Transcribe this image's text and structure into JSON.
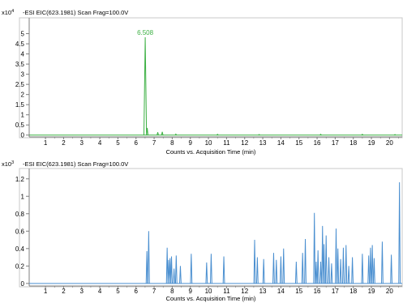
{
  "colors": {
    "series1": "#3cb043",
    "series2": "#4a8fd0",
    "axis": "#7f7f7f",
    "frame": "#c8c8c8"
  },
  "chart_data": [
    {
      "type": "line",
      "title": "-ESI EIC(623.1981) Scan Frag=100.0V",
      "xlabel": "Counts vs. Acquisition Time (min)",
      "ylabel": "",
      "y_multiplier_base": "x10",
      "y_multiplier_exp": "4",
      "xlim": [
        0.1,
        20.7
      ],
      "ylim": [
        -0.05,
        5.7
      ],
      "x_ticks": [
        1,
        2,
        3,
        4,
        5,
        6,
        7,
        8,
        9,
        10,
        11,
        12,
        13,
        14,
        15,
        16,
        17,
        18,
        19,
        20
      ],
      "y_ticks": [
        0,
        0.5,
        1,
        1.5,
        2,
        2.5,
        3,
        3.5,
        4,
        4.5,
        5
      ],
      "y_tick_labels": [
        "0",
        "0.5",
        "1",
        "1.5",
        "2",
        "2.5",
        "3",
        "3.5",
        "4",
        "4.5",
        "5"
      ],
      "x_tick_labels": [
        "1",
        "2",
        "3",
        "4",
        "5",
        "6",
        "7",
        "8",
        "9",
        "10",
        "11",
        "12",
        "13",
        "14",
        "15",
        "16",
        "17",
        "18",
        "19",
        "20"
      ],
      "peak_label": "6.508",
      "baseline": 0,
      "peaks": [
        {
          "x": 6.508,
          "y": 4.82
        },
        {
          "x": 6.62,
          "y": 0.35
        },
        {
          "x": 7.2,
          "y": 0.14
        },
        {
          "x": 7.45,
          "y": 0.16
        },
        {
          "x": 8.2,
          "y": 0.05
        },
        {
          "x": 10.5,
          "y": 0.04
        },
        {
          "x": 12.8,
          "y": 0.03
        },
        {
          "x": 16.2,
          "y": 0.04
        },
        {
          "x": 18.5,
          "y": 0.04
        },
        {
          "x": 20.3,
          "y": 0.03
        }
      ]
    },
    {
      "type": "line",
      "title": "-ESI EIC(623.1981) Scan Frag=100.0V",
      "xlabel": "Counts vs. Acquisition Time (min)",
      "ylabel": "",
      "y_multiplier_base": "x10",
      "y_multiplier_exp": "3",
      "xlim": [
        0.1,
        20.7
      ],
      "ylim": [
        -0.02,
        1.3
      ],
      "x_ticks": [
        1,
        2,
        3,
        4,
        5,
        6,
        7,
        8,
        9,
        10,
        11,
        12,
        13,
        14,
        15,
        16,
        17,
        18,
        19,
        20
      ],
      "y_ticks": [
        0,
        0.2,
        0.4,
        0.6,
        0.8,
        1,
        1.2
      ],
      "y_tick_labels": [
        "0",
        "0.2",
        "0.4",
        "0.6",
        "0.8",
        "1",
        "1.2"
      ],
      "x_tick_labels": [
        "1",
        "2",
        "3",
        "4",
        "5",
        "6",
        "7",
        "8",
        "9",
        "10",
        "11",
        "12",
        "13",
        "14",
        "15",
        "16",
        "17",
        "18",
        "19",
        "20"
      ],
      "baseline": 0,
      "peaks": [
        {
          "x": 6.6,
          "y": 0.37
        },
        {
          "x": 6.7,
          "y": 0.6
        },
        {
          "x": 7.72,
          "y": 0.41
        },
        {
          "x": 7.8,
          "y": 0.27
        },
        {
          "x": 7.88,
          "y": 0.29
        },
        {
          "x": 7.96,
          "y": 0.31
        },
        {
          "x": 8.1,
          "y": 0.17
        },
        {
          "x": 8.22,
          "y": 0.32
        },
        {
          "x": 8.45,
          "y": 0.2
        },
        {
          "x": 9.05,
          "y": 0.34
        },
        {
          "x": 9.9,
          "y": 0.24
        },
        {
          "x": 10.15,
          "y": 0.34
        },
        {
          "x": 10.85,
          "y": 0.31
        },
        {
          "x": 12.55,
          "y": 0.5
        },
        {
          "x": 12.7,
          "y": 0.3
        },
        {
          "x": 13.05,
          "y": 0.28
        },
        {
          "x": 13.6,
          "y": 0.35
        },
        {
          "x": 13.75,
          "y": 0.27
        },
        {
          "x": 14.0,
          "y": 0.31
        },
        {
          "x": 14.15,
          "y": 0.4
        },
        {
          "x": 14.85,
          "y": 0.25
        },
        {
          "x": 15.2,
          "y": 0.35
        },
        {
          "x": 15.35,
          "y": 0.51
        },
        {
          "x": 15.85,
          "y": 0.81
        },
        {
          "x": 15.95,
          "y": 0.25
        },
        {
          "x": 16.05,
          "y": 0.38
        },
        {
          "x": 16.2,
          "y": 0.25
        },
        {
          "x": 16.3,
          "y": 0.66
        },
        {
          "x": 16.38,
          "y": 0.45
        },
        {
          "x": 16.5,
          "y": 0.55
        },
        {
          "x": 16.65,
          "y": 0.3
        },
        {
          "x": 16.8,
          "y": 0.23
        },
        {
          "x": 17.05,
          "y": 0.63
        },
        {
          "x": 17.15,
          "y": 0.4
        },
        {
          "x": 17.3,
          "y": 0.28
        },
        {
          "x": 17.45,
          "y": 0.41
        },
        {
          "x": 17.6,
          "y": 0.44
        },
        {
          "x": 17.75,
          "y": 0.2
        },
        {
          "x": 17.95,
          "y": 0.3
        },
        {
          "x": 18.5,
          "y": 0.34
        },
        {
          "x": 18.85,
          "y": 0.32
        },
        {
          "x": 18.95,
          "y": 0.41
        },
        {
          "x": 19.05,
          "y": 0.44
        },
        {
          "x": 19.15,
          "y": 0.29
        },
        {
          "x": 19.6,
          "y": 0.48
        },
        {
          "x": 20.1,
          "y": 0.33
        },
        {
          "x": 20.55,
          "y": 1.16
        }
      ]
    }
  ]
}
